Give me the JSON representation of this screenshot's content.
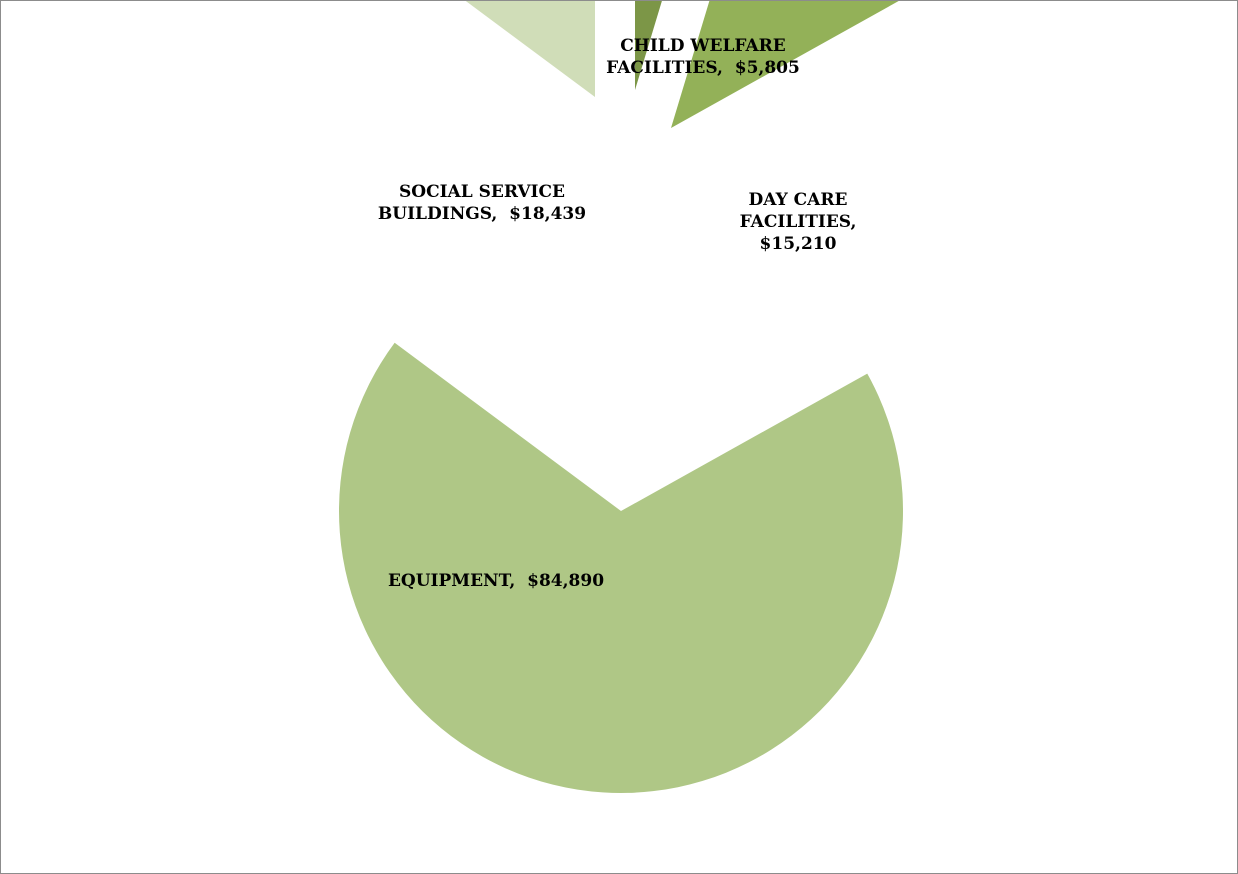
{
  "chart_data": {
    "type": "pie",
    "exploded": true,
    "title": "",
    "legend": "none",
    "slices": [
      {
        "name": "CHILD WELFARE FACILITIES",
        "value": 5805,
        "label_lines": [
          "CHILD WELFARE",
          "FACILITIES,  $5,805"
        ],
        "color": "#7c9647"
      },
      {
        "name": "DAY CARE FACILITIES",
        "value": 15210,
        "label_lines": [
          "DAY CARE",
          "FACILITIES,",
          "$15,210"
        ],
        "color": "#93b158"
      },
      {
        "name": "EQUIPMENT",
        "value": 84890,
        "label_lines": [
          "EQUIPMENT,  $84,890"
        ],
        "color": "#afc786"
      },
      {
        "name": "SOCIAL SERVICE BUILDINGS",
        "value": 18439,
        "label_lines": [
          "SOCIAL SERVICE",
          "BUILDINGS,  $18,439"
        ],
        "color": "#d0ddb8"
      }
    ]
  }
}
